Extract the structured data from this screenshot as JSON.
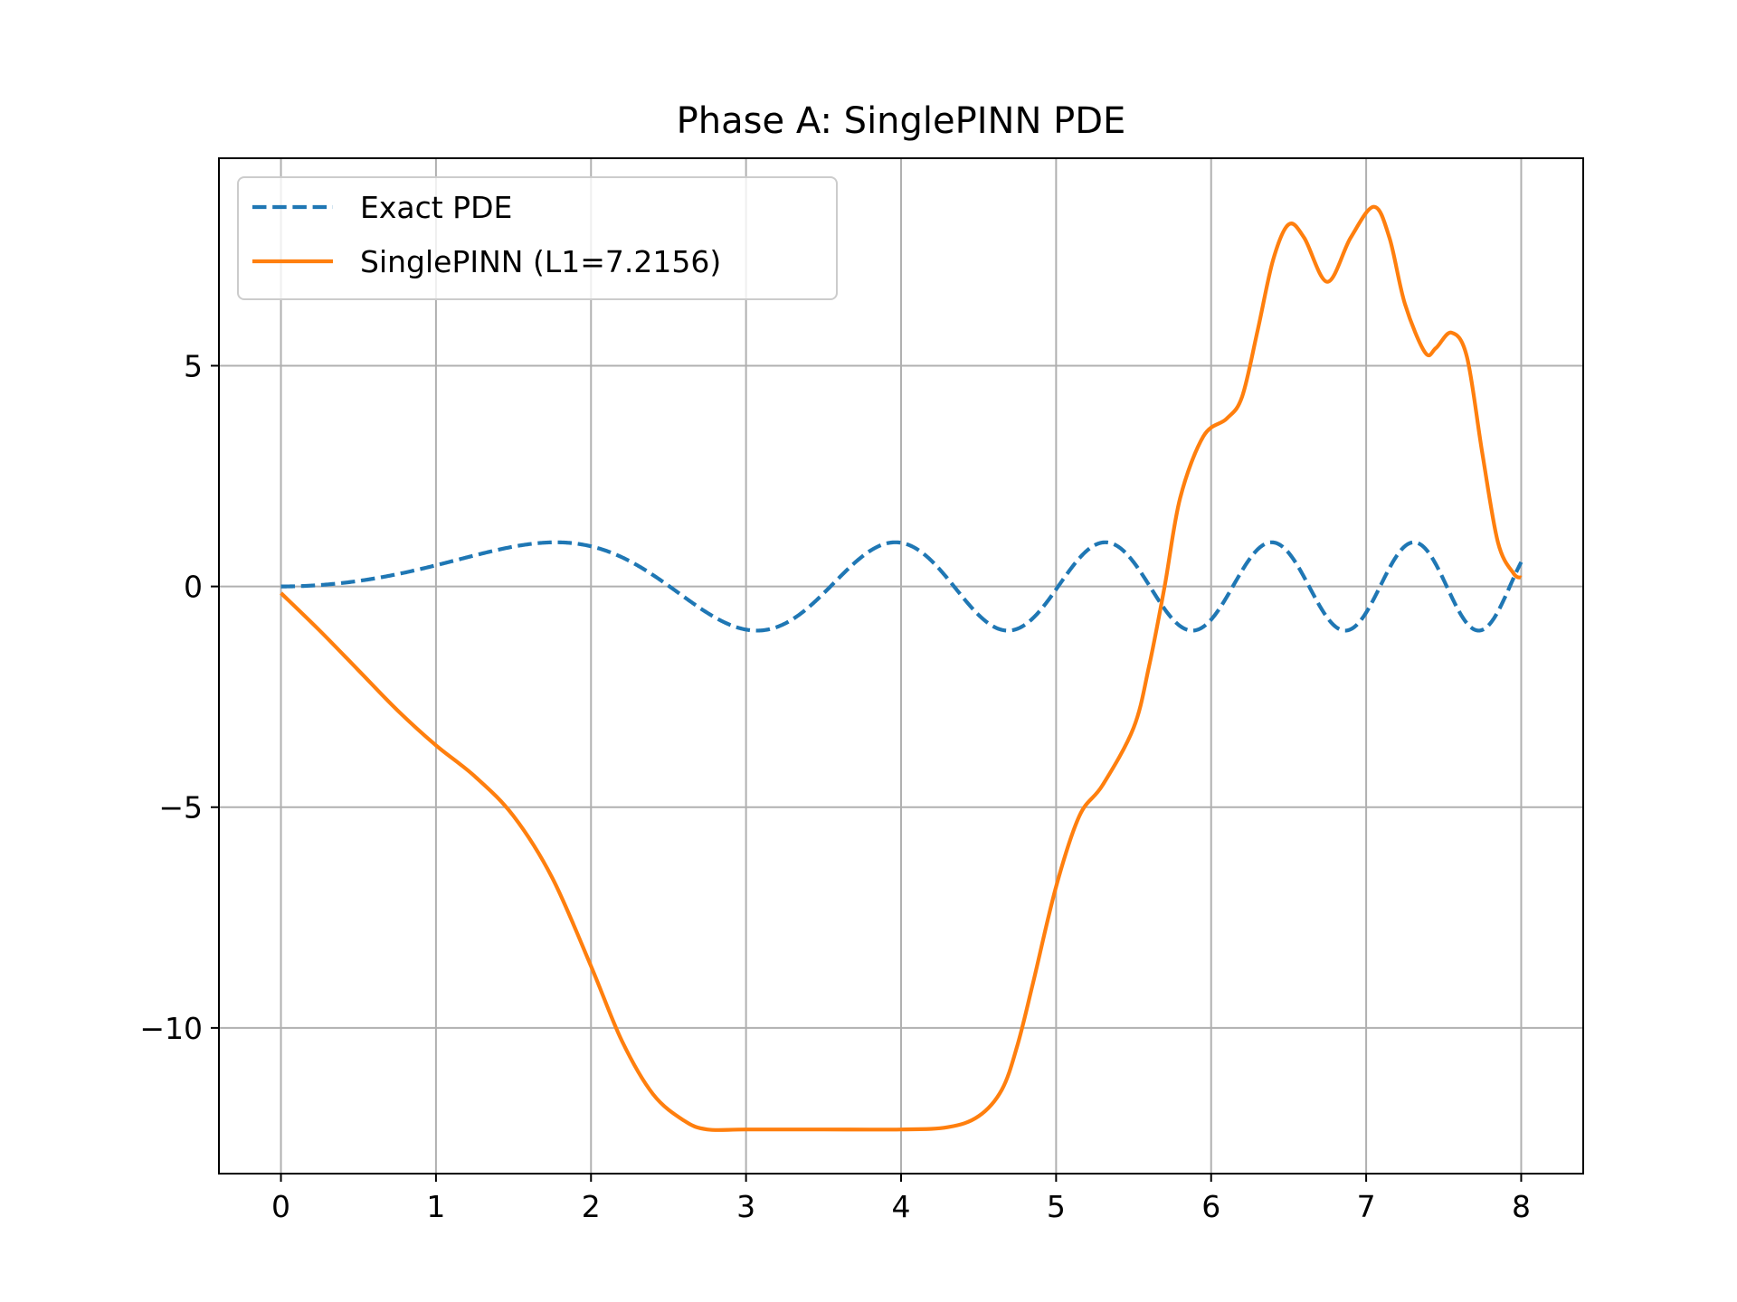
{
  "chart_data": {
    "type": "line",
    "title": "Phase A: SinglePINN PDE",
    "xlabel": "",
    "ylabel": "",
    "xlim": [
      -0.4,
      8.4
    ],
    "ylim": [
      -13.3,
      9.7
    ],
    "xticks": [
      0,
      1,
      2,
      3,
      4,
      5,
      6,
      7,
      8
    ],
    "xtick_labels": [
      "0",
      "1",
      "2",
      "3",
      "4",
      "5",
      "6",
      "7",
      "8"
    ],
    "yticks": [
      -10,
      -5,
      0,
      5
    ],
    "ytick_labels": [
      "−10",
      "−5",
      "0",
      "5"
    ],
    "grid": true,
    "legend_position": "upper-left",
    "series": [
      {
        "name": "Exact PDE",
        "color": "#1f77b4",
        "style": "dashed",
        "function": "sin(x^2/2)",
        "x": [
          0,
          0.25,
          0.5,
          0.75,
          1.0,
          1.25,
          1.41,
          1.6,
          1.8,
          2.0,
          2.2,
          2.4,
          2.5,
          2.7,
          2.9,
          3.07,
          3.2,
          3.4,
          3.6,
          3.75,
          3.9,
          4.1,
          4.3,
          4.5,
          4.6,
          4.8,
          5.0,
          5.2,
          5.4,
          5.6,
          5.8,
          6.0,
          6.2,
          6.4,
          6.6,
          6.8,
          7.0,
          7.2,
          7.4,
          7.6,
          7.8,
          8.0
        ],
        "values": [
          0.0,
          0.03,
          0.12,
          0.28,
          0.48,
          0.71,
          0.84,
          0.96,
          1.0,
          0.91,
          0.66,
          0.31,
          -0.04,
          -0.52,
          -0.95,
          -0.98,
          -0.67,
          0.18,
          0.94,
          0.98,
          0.66,
          -0.37,
          -0.96,
          -0.81,
          -0.39,
          0.72,
          0.98,
          -0.11,
          -0.89,
          0.47,
          0.76,
          -0.75,
          -0.41,
          1.0,
          -0.52,
          0.04,
          0.3,
          -0.88,
          -0.24,
          0.62,
          -0.62,
          0.55
        ]
      },
      {
        "name": "SinglePINN (L1=7.2156)",
        "color": "#ff7f0e",
        "style": "solid",
        "x": [
          0,
          0.25,
          0.5,
          0.75,
          1.0,
          1.25,
          1.5,
          1.75,
          2.0,
          2.2,
          2.4,
          2.6,
          2.75,
          3.0,
          3.5,
          4.0,
          4.3,
          4.5,
          4.65,
          4.75,
          4.85,
          5.0,
          5.15,
          5.3,
          5.5,
          5.6,
          5.7,
          5.8,
          5.95,
          6.1,
          6.2,
          6.3,
          6.4,
          6.5,
          6.6,
          6.75,
          6.9,
          7.05,
          7.15,
          7.25,
          7.38,
          7.45,
          7.55,
          7.65,
          7.75,
          7.85,
          7.95,
          8.0
        ],
        "values": [
          -0.15,
          -1.0,
          -1.9,
          -2.8,
          -3.6,
          -4.3,
          -5.2,
          -6.6,
          -8.6,
          -10.3,
          -11.5,
          -12.1,
          -12.3,
          -12.3,
          -12.3,
          -12.3,
          -12.25,
          -12.0,
          -11.4,
          -10.4,
          -9.0,
          -6.8,
          -5.2,
          -4.5,
          -3.2,
          -1.8,
          0.0,
          2.0,
          3.4,
          3.8,
          4.3,
          5.8,
          7.4,
          8.2,
          7.9,
          6.9,
          7.9,
          8.6,
          7.9,
          6.4,
          5.3,
          5.4,
          5.75,
          5.2,
          3.0,
          1.0,
          0.3,
          0.2
        ]
      }
    ]
  }
}
